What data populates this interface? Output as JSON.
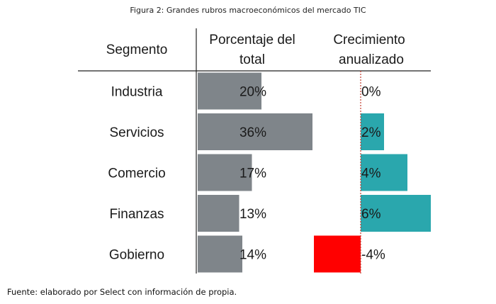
{
  "caption": "Figura 2: Grandes rubros macroeconómicos del mercado TIC",
  "source": "Fuente: elaborado por Select con información de propia.",
  "colors": {
    "share_bar": "#7f858a",
    "growth_positive": "#2aa7ad",
    "growth_negative": "#ff0000",
    "zero_line": "#c0392b"
  },
  "chart_data": {
    "type": "bar",
    "headers": {
      "segment": "Segmento",
      "share_line1": "Porcentaje del",
      "share_line2": "total",
      "growth_line1": "Crecimiento",
      "growth_line2": "anualizado"
    },
    "categories": [
      "Industria",
      "Servicios",
      "Comercio",
      "Finanzas",
      "Gobierno"
    ],
    "series": [
      {
        "name": "Porcentaje del total",
        "values": [
          20,
          36,
          17,
          13,
          14
        ],
        "labels": [
          "20%",
          "36%",
          "17%",
          "13%",
          "14%"
        ]
      },
      {
        "name": "Crecimiento anualizado",
        "values": [
          0,
          2,
          4,
          6,
          -4
        ],
        "labels": [
          "0%",
          "2%",
          "4%",
          "6%",
          "-4%"
        ]
      }
    ]
  }
}
